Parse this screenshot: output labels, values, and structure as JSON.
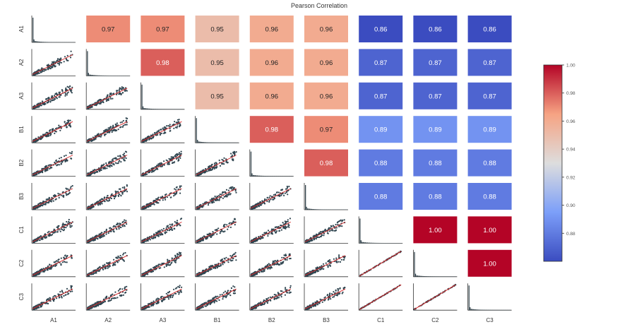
{
  "chart_data": {
    "type": "heatmap",
    "title": "Pearson Correlation",
    "variables": [
      "A1",
      "A2",
      "A3",
      "B1",
      "B2",
      "B3",
      "C1",
      "C2",
      "C3"
    ],
    "upper_triangle_values": [
      [
        null,
        0.97,
        0.97,
        0.95,
        0.96,
        0.96,
        0.86,
        0.86,
        0.86
      ],
      [
        null,
        null,
        0.98,
        0.95,
        0.96,
        0.96,
        0.87,
        0.87,
        0.87
      ],
      [
        null,
        null,
        null,
        0.95,
        0.96,
        0.96,
        0.87,
        0.87,
        0.87
      ],
      [
        null,
        null,
        null,
        null,
        0.98,
        0.97,
        0.89,
        0.89,
        0.89
      ],
      [
        null,
        null,
        null,
        null,
        null,
        0.98,
        0.88,
        0.88,
        0.88
      ],
      [
        null,
        null,
        null,
        null,
        null,
        null,
        0.88,
        0.88,
        0.88
      ],
      [
        null,
        null,
        null,
        null,
        null,
        null,
        null,
        1.0,
        1.0
      ],
      [
        null,
        null,
        null,
        null,
        null,
        null,
        null,
        null,
        1.0
      ],
      [
        null,
        null,
        null,
        null,
        null,
        null,
        null,
        null,
        null
      ]
    ],
    "value_format_decimals": 2,
    "diagonal": "histogram",
    "lower_triangle": "scatter with red fit line",
    "colorbar": {
      "ticks": [
        0.88,
        0.9,
        0.92,
        0.94,
        0.96,
        0.98,
        1.0
      ],
      "tick_labels": [
        "0.88",
        "0.90",
        "0.92",
        "0.94",
        "0.96",
        "0.98",
        "1.00"
      ],
      "range": [
        0.86,
        1.0
      ],
      "colormap": "coolwarm",
      "location": "right"
    },
    "colors": {
      "scatter_points": "#2f4550",
      "fit_line": "#d62728",
      "histogram": "#37474f",
      "axis": "#333333"
    }
  }
}
